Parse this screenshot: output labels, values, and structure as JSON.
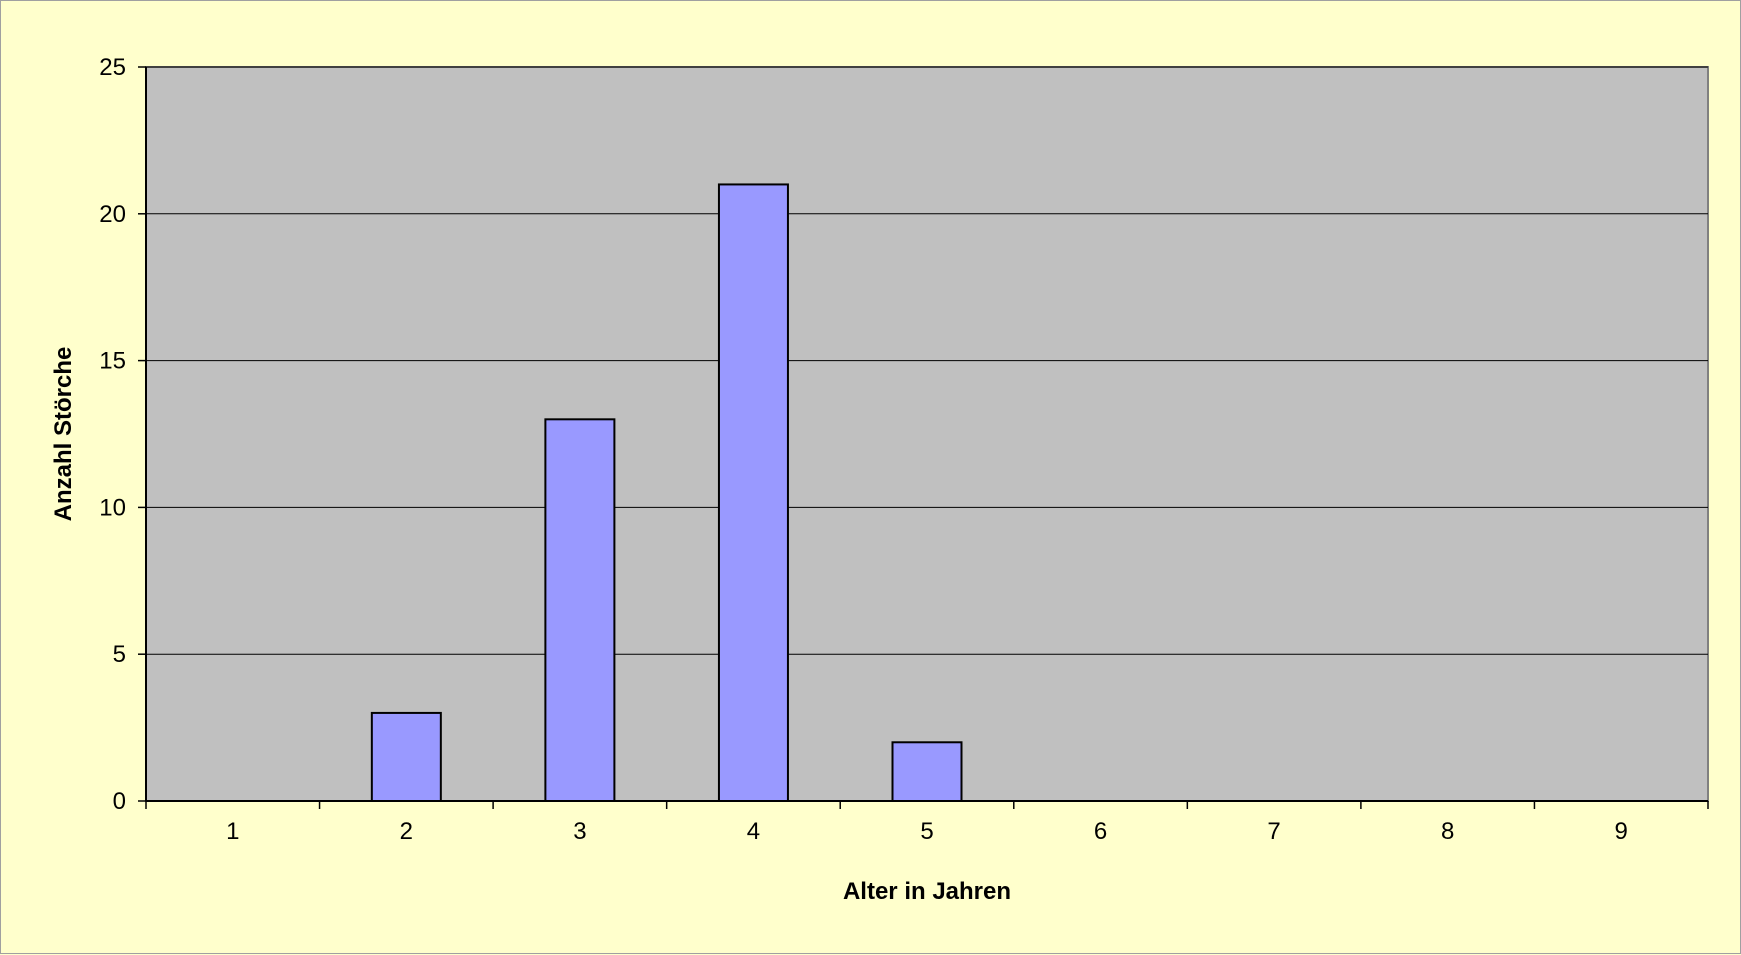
{
  "chart_data": {
    "type": "bar",
    "categories": [
      "1",
      "2",
      "3",
      "4",
      "5",
      "6",
      "7",
      "8",
      "9"
    ],
    "values": [
      0,
      3,
      13,
      21,
      2,
      0,
      0,
      0,
      0
    ],
    "title": "",
    "xlabel": "Alter in Jahren",
    "ylabel": "Anzahl Störche",
    "ylim": [
      0,
      25
    ],
    "yticks": [
      0,
      5,
      10,
      15,
      20,
      25
    ],
    "grid": "horizontal",
    "legend": "none",
    "colors": {
      "page_background": "#ffffcc",
      "plot_background": "#c0c0c0",
      "bar_fill": "#9999ff",
      "bar_stroke": "#000000",
      "gridline": "#000000"
    }
  }
}
